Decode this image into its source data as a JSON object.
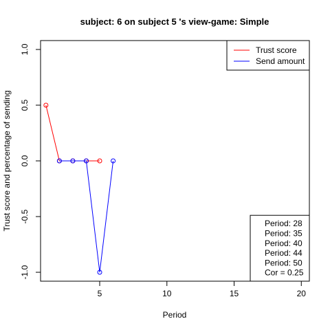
{
  "chart_data": {
    "type": "line",
    "title": "subject:  6  on subject  5 's view-game:  Simple",
    "xlabel": "Period",
    "ylabel": "Trust score and percentage of sending",
    "xlim": [
      0.6,
      20.6
    ],
    "ylim": [
      -1.08,
      1.08
    ],
    "x_ticks": [
      5,
      10,
      15,
      20
    ],
    "x_tick_labels": [
      "5",
      "10",
      "15",
      "20"
    ],
    "y_ticks": [
      -1.0,
      -0.5,
      0.0,
      0.5,
      1.0
    ],
    "y_tick_labels": [
      "-1.0",
      "-0.5",
      "0.0",
      "0.5",
      "1.0"
    ],
    "grid": false,
    "legend_position": "top-right",
    "series": [
      {
        "name": "Trust score",
        "color": "#ff0000",
        "x": [
          1,
          2,
          3,
          4,
          5
        ],
        "y": [
          0.5,
          0,
          0,
          0,
          0
        ]
      },
      {
        "name": "Send amount",
        "color": "#0000ff",
        "x": [
          2,
          3,
          4,
          5,
          6
        ],
        "y": [
          0,
          0,
          0,
          -1,
          0
        ]
      }
    ],
    "info_box": {
      "position": "bottom-right",
      "lines": [
        "Period:  28",
        "Period:  35",
        "Period:  40",
        "Period:  44",
        "Period:  50",
        "Cor =  0.25"
      ]
    }
  }
}
